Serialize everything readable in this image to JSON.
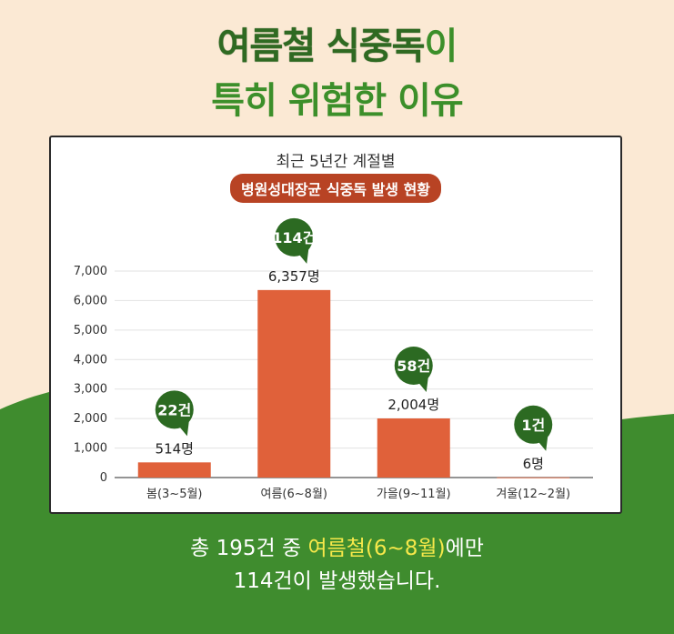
{
  "headline": {
    "line1_part1": "여름철 식중독",
    "line1_part2": "이",
    "line2": "특히 위험한 이유"
  },
  "chart_data": {
    "type": "bar",
    "title": "최근 5년간 계절별",
    "subtitle": "병원성대장균 식중독 발생 현황",
    "categories": [
      "봄(3~5월)",
      "여름(6~8월)",
      "가을(9~11월)",
      "겨울(12~2월)"
    ],
    "values": [
      514,
      6357,
      2004,
      6
    ],
    "value_labels": [
      "514명",
      "6,357명",
      "2,004명",
      "6명"
    ],
    "case_labels": [
      "22건",
      "114건",
      "58건",
      "1건"
    ],
    "ylim": [
      0,
      7000
    ],
    "yticks": [
      0,
      1000,
      2000,
      3000,
      4000,
      5000,
      6000,
      7000
    ],
    "ytick_labels": [
      "0",
      "1,000",
      "2,000",
      "3,000",
      "4,000",
      "5,000",
      "6,000",
      "7,000"
    ],
    "grid": true,
    "bar_color": "#e0613a",
    "badge_color": "#2c6a22"
  },
  "footer": {
    "line1_part1": "총 195건 중 ",
    "line1_highlight": "여름철(6~8월)",
    "line1_part2": "에만",
    "line2": "114건이 발생했습니다."
  },
  "colors": {
    "background": "#fbe9d4",
    "green": "#3f8c2e",
    "highlight": "#f6e84a"
  }
}
